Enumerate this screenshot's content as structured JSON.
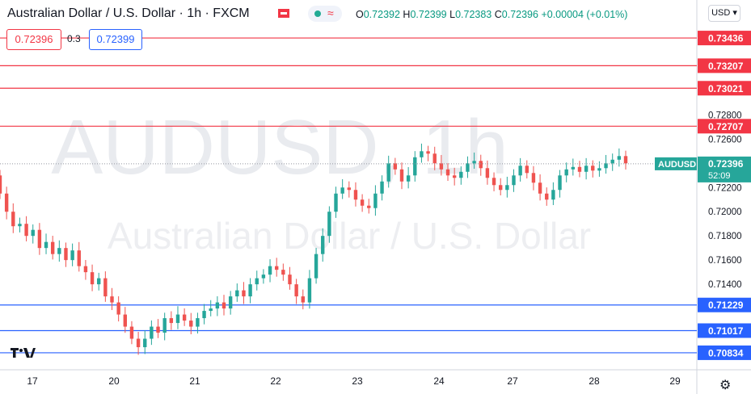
{
  "header": {
    "symbol": "Australian Dollar / U.S. Dollar · 1h · FXCM",
    "ohlc": {
      "o_label": "O",
      "o": "0.72392",
      "h_label": "H",
      "h": "0.72399",
      "l_label": "L",
      "l": "0.72383",
      "c_label": "C",
      "c": "0.72396",
      "change": "+0.00004 (+0.01%)"
    }
  },
  "trade": {
    "sell": "0.72396",
    "spread": "0.3",
    "buy": "0.72399"
  },
  "currency_button": "USD",
  "watermark": {
    "line1": "AUDUSD, 1h",
    "line2": "Australian Dollar / U.S. Dollar"
  },
  "colors": {
    "up": "#26a69a",
    "down": "#ef5350",
    "resistance": "#f23645",
    "support": "#2962ff",
    "axis_text": "#131722"
  },
  "chart_data": {
    "type": "candlestick",
    "x_labels": [
      "17",
      "20",
      "21",
      "22",
      "23",
      "24",
      "27",
      "28",
      "29"
    ],
    "y_ticks": [
      "0.71400",
      "0.71600",
      "0.71800",
      "0.72000",
      "0.72200",
      "0.72600",
      "0.72800"
    ],
    "ylim": [
      0.7076,
      0.7351
    ],
    "resistance_levels": [
      "0.73436",
      "0.73207",
      "0.73021",
      "0.72707"
    ],
    "support_levels": [
      "0.71229",
      "0.71017",
      "0.70834"
    ],
    "last_price": {
      "symbol": "AUDUSD",
      "value": "0.72396",
      "countdown": "52:09"
    },
    "close_series": [
      0.7215,
      0.72,
      0.7188,
      0.719,
      0.718,
      0.7185,
      0.717,
      0.7175,
      0.7165,
      0.717,
      0.716,
      0.7168,
      0.7155,
      0.715,
      0.714,
      0.7145,
      0.713,
      0.7125,
      0.7115,
      0.7105,
      0.7095,
      0.7088,
      0.7095,
      0.7105,
      0.71,
      0.7112,
      0.7108,
      0.7115,
      0.711,
      0.7105,
      0.7112,
      0.7118,
      0.712,
      0.7125,
      0.712,
      0.713,
      0.7135,
      0.713,
      0.714,
      0.7145,
      0.7148,
      0.7155,
      0.7152,
      0.7148,
      0.714,
      0.713,
      0.7125,
      0.7145,
      0.7165,
      0.718,
      0.72,
      0.7215,
      0.722,
      0.7218,
      0.721,
      0.7205,
      0.7203,
      0.7215,
      0.7225,
      0.724,
      0.7235,
      0.7225,
      0.723,
      0.7245,
      0.725,
      0.7248,
      0.724,
      0.7235,
      0.723,
      0.7228,
      0.7233,
      0.724,
      0.7242,
      0.7236,
      0.7228,
      0.7222,
      0.7218,
      0.7222,
      0.723,
      0.7238,
      0.7232,
      0.7224,
      0.7215,
      0.721,
      0.7218,
      0.723,
      0.7235,
      0.7237,
      0.7233,
      0.7238,
      0.7234,
      0.7236,
      0.724,
      0.7243,
      0.7246,
      0.724
    ]
  }
}
